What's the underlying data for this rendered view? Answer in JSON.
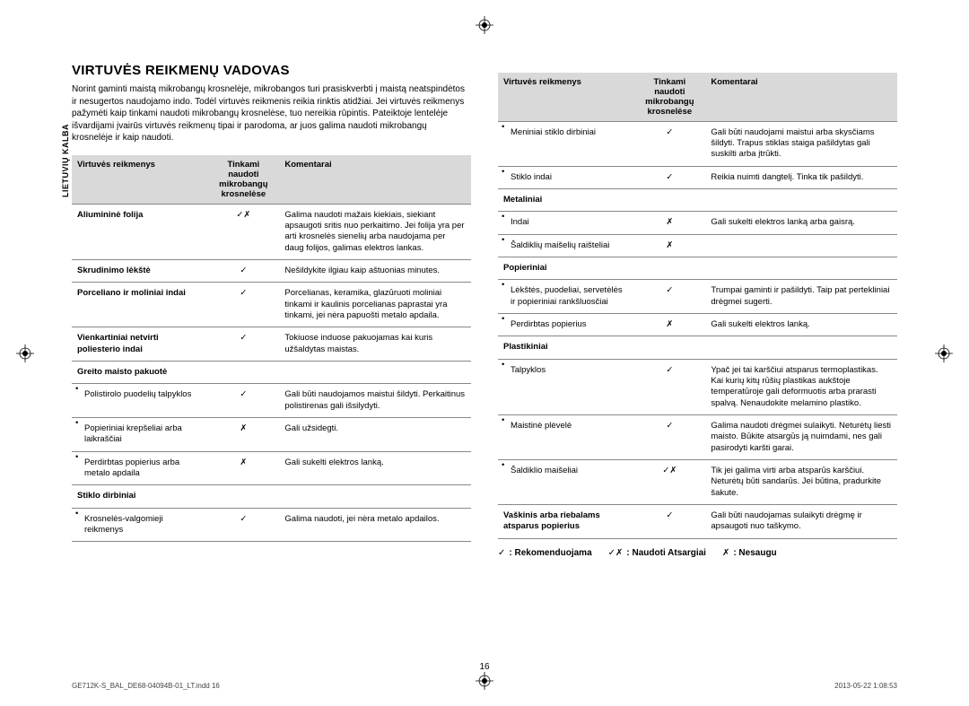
{
  "sideLabel": "LIETUVIŲ KALBA",
  "title": "VIRTUVĖS REIKMENŲ VADOVAS",
  "intro": "Norint gaminti maistą mikrobangų krosnelėje, mikrobangos turi prasiskverbti į maistą neatspindėtos ir nesugertos naudojamo indo. Todėl virtuvės reikmenis reikia rinktis atidžiai. Jei virtuvės reikmenys pažymėti kaip tinkami naudoti mikrobangų krosnelėse, tuo nereikia rūpintis. Pateiktoje lentelėje išvardijami įvairūs virtuvės reikmenų tipai ir parodoma, ar juos galima naudoti mikrobangų krosnelėje ir kaip naudoti.",
  "headers": {
    "c1": "Virtuvės reikmenys",
    "c2": "Tinkami naudoti mikrobangų krosnelėse",
    "c3": "Komentarai"
  },
  "symbols": {
    "ok": "✓",
    "cross": "✗",
    "mixed": "✓✗"
  },
  "tableLeft": [
    {
      "label": "Aliumininė folija",
      "bold": true,
      "sym": "mixed",
      "comment": "Galima naudoti mažais kiekiais, siekiant apsaugoti sritis nuo perkaitimo. Jei folija yra per arti krosnelės sienelių arba naudojama per daug folijos, galimas elektros lankas."
    },
    {
      "label": "Skrudinimo lėkštė",
      "bold": true,
      "sym": "ok",
      "comment": "Nešildykite ilgiau kaip aštuonias minutes."
    },
    {
      "label": "Porceliano ir moliniai indai",
      "bold": true,
      "sym": "ok",
      "comment": "Porcelianas, keramika, glazūruoti moliniai tinkami ir kaulinis porcelianas paprastai yra tinkami, jei nėra papuošti metalo apdaila."
    },
    {
      "label": "Vienkartiniai netvirti poliesterio indai",
      "bold": true,
      "sym": "ok",
      "comment": "Tokiuose induose pakuojamas kai kuris užšaldytas maistas."
    },
    {
      "label": "Greito maisto pakuotė",
      "bold": true,
      "header": true
    },
    {
      "label": "Polistirolo puodelių talpyklos",
      "bullet": true,
      "sym": "ok",
      "comment": "Gali būti naudojamos maistui šildyti. Perkaitinus polistirenas gali išsilydyti."
    },
    {
      "label": "Popieriniai krepšeliai arba laikraščiai",
      "bullet": true,
      "sym": "cross",
      "comment": "Gali užsidegti."
    },
    {
      "label": "Perdirbtas popierius arba metalo apdaila",
      "bullet": true,
      "sym": "cross",
      "comment": "Gali sukelti elektros lanką."
    },
    {
      "label": "Stiklo dirbiniai",
      "bold": true,
      "header": true
    },
    {
      "label": "Krosnelės-valgomieji reikmenys",
      "bullet": true,
      "sym": "ok",
      "comment": "Galima naudoti, jei nėra metalo apdailos."
    }
  ],
  "tableRight": [
    {
      "label": "Meniniai stiklo dirbiniai",
      "bullet": true,
      "sym": "ok",
      "comment": "Gali būti naudojami maistui arba skysčiams šildyti. Trapus stiklas staiga pašildytas gali suskilti arba įtrūkti."
    },
    {
      "label": "Stiklo indai",
      "bullet": true,
      "sym": "ok",
      "comment": "Reikia nuimti dangtelį. Tinka tik pašildyti."
    },
    {
      "label": "Metaliniai",
      "bold": true,
      "header": true
    },
    {
      "label": "Indai",
      "bullet": true,
      "sym": "cross",
      "comment": "Gali sukelti elektros lanką arba gaisrą."
    },
    {
      "label": "Šaldiklių maišelių raišteliai",
      "bullet": true,
      "sym": "cross",
      "comment": ""
    },
    {
      "label": "Popieriniai",
      "bold": true,
      "header": true
    },
    {
      "label": "Lėkštės, puodeliai, servetėlės ir popieriniai rankšluosčiai",
      "bullet": true,
      "sym": "ok",
      "comment": "Trumpai gaminti ir pašildyti. Taip pat pertekliniai drėgmei sugerti."
    },
    {
      "label": "Perdirbtas popierius",
      "bullet": true,
      "sym": "cross",
      "comment": "Gali sukelti elektros lanką."
    },
    {
      "label": "Plastikiniai",
      "bold": true,
      "header": true
    },
    {
      "label": "Talpyklos",
      "bullet": true,
      "sym": "ok",
      "comment": "Ypač jei tai karščiui atsparus termoplastikas. Kai kurių kitų rūšių plastikas aukštoje temperatūroje gali deformuotis arba prarasti spalvą. Nenaudokite melamino plastiko."
    },
    {
      "label": "Maistinė plėvelė",
      "bullet": true,
      "sym": "ok",
      "comment": "Galima naudoti drėgmei sulaikyti. Neturėtų liesti maisto. Būkite atsargūs ją nuimdami, nes gali pasirodyti karšti garai."
    },
    {
      "label": "Šaldiklio maišeliai",
      "bullet": true,
      "sym": "mixed",
      "comment": "Tik jei galima virti arba atsparūs karščiui. Neturėtų būti sandarūs. Jei būtina, pradurkite šakute."
    },
    {
      "label": "Vaškinis arba riebalams atsparus popierius",
      "bold": true,
      "sym": "ok",
      "comment": "Gali būti naudojamas sulaikyti drėgmę ir apsaugoti nuo taškymo."
    }
  ],
  "legend": {
    "ok": ": Rekomenduojama",
    "mixed": ": Naudoti Atsargiai",
    "cross": ": Nesaugu"
  },
  "pageNum": "16",
  "footerLeft": "GE712K-S_BAL_DE68-04094B-01_LT.indd   16",
  "footerRight": "2013-05-22      1:08:53"
}
